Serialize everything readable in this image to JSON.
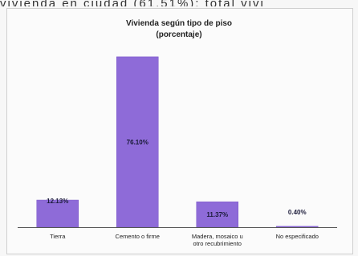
{
  "page": {
    "caption_fragment": "vivienda en ciudad (61.51%); total vivi"
  },
  "chart_data": {
    "type": "bar",
    "title": "Vivienda según tipo de piso",
    "subtitle": "(porcentaje)",
    "categories": [
      [
        "Tierra"
      ],
      [
        "Cemento o firme"
      ],
      [
        "Madera, mosaico u",
        "otro recubrimiento"
      ],
      [
        "No especificado"
      ]
    ],
    "values": [
      12.13,
      76.1,
      11.37,
      0.4
    ],
    "value_labels": [
      "12.13%",
      "76.10%",
      "11.37%",
      "0.40%"
    ],
    "ylim": [
      0,
      80
    ],
    "grid": false,
    "legend": "none",
    "colors": {
      "bar": "#8e6bd8",
      "bar_border": "#7a56c9",
      "axis": "#555555",
      "text": "#222222"
    }
  }
}
